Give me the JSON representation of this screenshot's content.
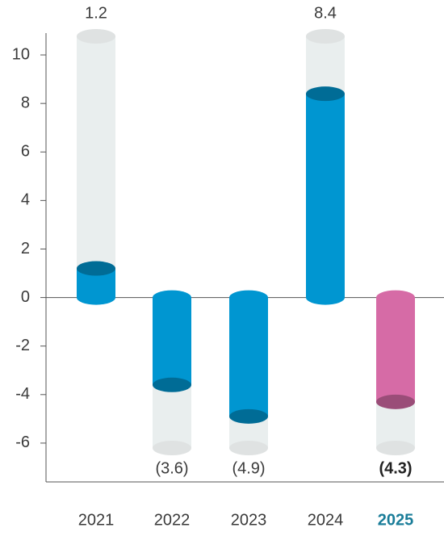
{
  "chart_data": {
    "type": "bar",
    "categories": [
      "2021",
      "2022",
      "2023",
      "2024",
      "2025"
    ],
    "values": [
      1.2,
      -3.6,
      -4.9,
      8.4,
      -4.3
    ],
    "value_labels": [
      "1.2",
      "(3.6)",
      "(4.9)",
      "8.4",
      "(4.3)"
    ],
    "colors": [
      "#0096d1",
      "#0096d1",
      "#0096d1",
      "#0096d1",
      "#d66ba6"
    ],
    "highlight_category": 4,
    "ylim": [
      -7.6,
      10.9
    ],
    "yticks": [
      -6,
      -4,
      -2,
      0,
      2,
      4,
      6,
      8,
      10
    ]
  }
}
